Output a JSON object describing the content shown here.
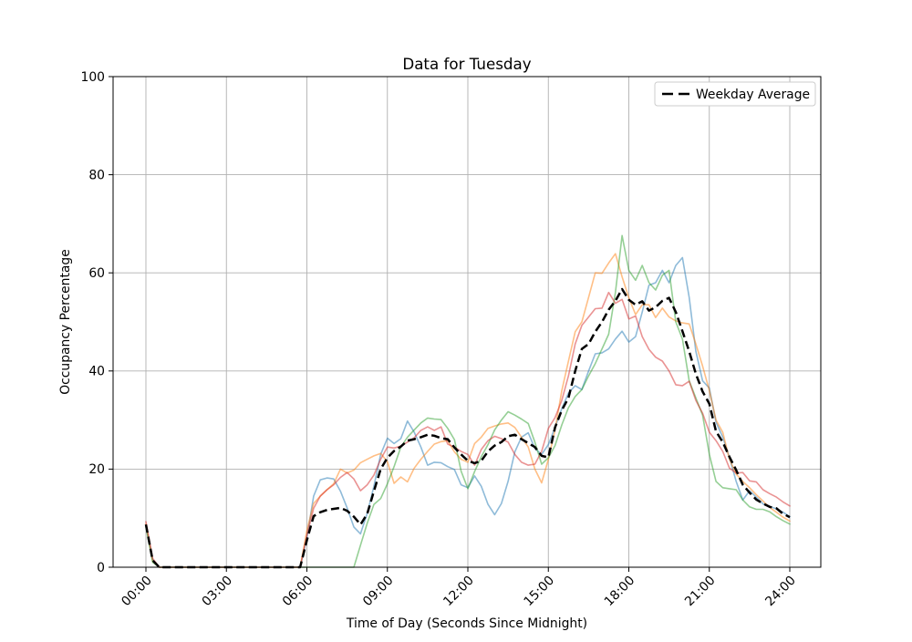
{
  "figure": {
    "background": "#ffffff"
  },
  "chart_data": {
    "type": "line",
    "title": "Data for Tuesday",
    "xlabel": "Time of Day (Seconds Since Midnight)",
    "ylabel": "Occupancy Percentage",
    "ylim": [
      0,
      100
    ],
    "y_ticks": [
      0,
      20,
      40,
      60,
      80,
      100
    ],
    "x_ticks": [
      {
        "seconds": 0,
        "label": "00:00"
      },
      {
        "seconds": 10800,
        "label": "03:00"
      },
      {
        "seconds": 21600,
        "label": "06:00"
      },
      {
        "seconds": 32400,
        "label": "09:00"
      },
      {
        "seconds": 43200,
        "label": "12:00"
      },
      {
        "seconds": 54000,
        "label": "15:00"
      },
      {
        "seconds": 64800,
        "label": "18:00"
      },
      {
        "seconds": 75600,
        "label": "21:00"
      },
      {
        "seconds": 86400,
        "label": "24:00"
      }
    ],
    "grid": true,
    "grid_color": "#b0b0b0",
    "x_start_seconds": 0,
    "x_step_seconds": 900,
    "series": [
      {
        "name": "line-1",
        "color": "#1f77b4",
        "alpha": 0.5,
        "line_width": 1.6,
        "values": [
          8.6,
          1.5,
          0,
          0,
          0,
          0,
          0,
          0,
          0,
          0,
          0,
          0,
          0,
          0,
          0,
          0,
          0,
          0,
          0,
          0,
          0,
          0,
          0,
          0,
          6,
          14.5,
          17.8,
          18.2,
          18,
          15.5,
          12.1,
          8.2,
          6.8,
          11,
          16.5,
          23,
          26.3,
          25.2,
          26.2,
          29.8,
          27.5,
          24.5,
          20.8,
          21.4,
          21.3,
          20.5,
          19.9,
          16.8,
          16.2,
          18.6,
          16.5,
          12.8,
          10.7,
          13,
          17.5,
          23.5,
          26.5,
          27.4,
          24.2,
          23,
          25,
          28.5,
          32.3,
          35.5,
          37,
          36.2,
          40,
          43.5,
          43.7,
          44.5,
          46.5,
          48.1,
          45.9,
          47,
          52,
          57.5,
          58,
          60.5,
          58,
          61.5,
          63.1,
          55,
          44,
          38,
          36.5,
          29.6,
          26.5,
          22.4,
          17.5,
          13.7,
          15.6,
          14.3,
          12.9,
          12.4,
          11.9,
          11.2,
          10.3
        ]
      },
      {
        "name": "line-2",
        "color": "#ff7f0e",
        "alpha": 0.5,
        "line_width": 1.6,
        "values": [
          8.8,
          1.2,
          0,
          0,
          0,
          0,
          0,
          0,
          0,
          0,
          0,
          0,
          0,
          0,
          0,
          0,
          0,
          0,
          0,
          0,
          0,
          0,
          0,
          0,
          7.5,
          13,
          14.5,
          15.8,
          17,
          20,
          19.2,
          19.8,
          21.3,
          22,
          22.7,
          23.2,
          21.5,
          17.1,
          18.4,
          17.4,
          20.2,
          22,
          23.6,
          25.1,
          25.6,
          25.8,
          23.5,
          22,
          21.4,
          25.2,
          26.5,
          28.3,
          28.8,
          29.2,
          29.4,
          28.5,
          26.5,
          24.5,
          20,
          17.2,
          22,
          28,
          36,
          42,
          48,
          50,
          55,
          60,
          59.9,
          62,
          63.9,
          59.2,
          54.9,
          51.5,
          53.5,
          53.5,
          50.9,
          52.8,
          51,
          50.2,
          49.8,
          49.6,
          45.5,
          41,
          36,
          30,
          27.5,
          22,
          19,
          17.5,
          16.2,
          14.8,
          13.5,
          12.2,
          11.2,
          10.2,
          9.4
        ]
      },
      {
        "name": "line-3",
        "color": "#2ca02c",
        "alpha": 0.5,
        "line_width": 1.6,
        "values": [
          8.2,
          1.0,
          0,
          0,
          0,
          0,
          0,
          0,
          0,
          0,
          0,
          0,
          0,
          0,
          0,
          0,
          0,
          0,
          0,
          0,
          0,
          0,
          0,
          0,
          0,
          0,
          0,
          0,
          0,
          0,
          0,
          0,
          4.5,
          9,
          12.8,
          14,
          17,
          20.5,
          24.5,
          26.5,
          28,
          29.4,
          30.4,
          30.2,
          30.1,
          28.3,
          26,
          19.6,
          16,
          19.5,
          22.5,
          25,
          28,
          30,
          31.7,
          31,
          30.2,
          29.3,
          25.5,
          21,
          22.3,
          24.8,
          29,
          32.5,
          34.8,
          36.2,
          39,
          41.5,
          44.5,
          47.5,
          56,
          67.6,
          60.5,
          58.5,
          61.5,
          58,
          56.5,
          59.5,
          60.5,
          50,
          46.5,
          38,
          34.5,
          31,
          23,
          17.5,
          16.2,
          16,
          15.8,
          13.7,
          12.3,
          11.8,
          11.8,
          11.3,
          10.3,
          9.5,
          8.8
        ]
      },
      {
        "name": "line-4",
        "color": "#d62728",
        "alpha": 0.5,
        "line_width": 1.6,
        "values": [
          9.3,
          1.8,
          0,
          0,
          0,
          0,
          0,
          0,
          0,
          0,
          0,
          0,
          0,
          0,
          0,
          0,
          0,
          0,
          0,
          0,
          0,
          0,
          0,
          0,
          6.5,
          12,
          14.5,
          15.8,
          16.8,
          18.3,
          19.3,
          18,
          15.6,
          16.8,
          18.8,
          22,
          24.5,
          24.3,
          24.7,
          25.5,
          26.4,
          27.9,
          28.6,
          27.9,
          28.6,
          25.1,
          24.5,
          23.6,
          23,
          20.8,
          24,
          25.8,
          26.7,
          26.2,
          25.5,
          23,
          21.4,
          20.8,
          21,
          23.6,
          28.3,
          30.5,
          34,
          39,
          45.5,
          49.3,
          51,
          52.7,
          52.8,
          56,
          53.8,
          54.6,
          50.6,
          51.2,
          47,
          44.4,
          42.8,
          42,
          40,
          37.2,
          37,
          37.9,
          34,
          31.4,
          27.5,
          25.8,
          23.6,
          20.2,
          19.2,
          19.3,
          17.6,
          17.4,
          15.8,
          15,
          14.3,
          13.3,
          12.5
        ]
      }
    ],
    "average": {
      "name": "Weekday Average",
      "color": "#000000",
      "line_style": "dashed",
      "line_width": 2.5,
      "values": [
        8.7,
        1.4,
        0,
        0,
        0,
        0,
        0,
        0,
        0,
        0,
        0,
        0,
        0,
        0,
        0,
        0,
        0,
        0,
        0,
        0,
        0,
        0,
        0,
        0,
        5.5,
        10.4,
        11.2,
        11.7,
        11.9,
        12.1,
        11.5,
        10.3,
        8.7,
        10.9,
        15.5,
        20,
        22.3,
        23.7,
        24.6,
        25.8,
        26.1,
        26.5,
        27,
        26.8,
        26.3,
        26.1,
        24.4,
        23,
        21.7,
        21.2,
        21.7,
        23.6,
        24.8,
        25.5,
        26.7,
        27,
        26.1,
        25.3,
        24.5,
        22.7,
        22.4,
        28.5,
        32,
        34.5,
        40,
        44.5,
        45.5,
        48,
        50,
        52.5,
        54.3,
        56.7,
        54.5,
        53.5,
        54.2,
        52.3,
        53,
        54.3,
        54.9,
        52,
        48.1,
        44,
        39.4,
        35.8,
        33.3,
        27.7,
        25.5,
        22.5,
        19.8,
        16.8,
        15.2,
        13.8,
        13,
        12.3,
        12,
        10.9,
        10.2
      ]
    },
    "legend": {
      "position": "upper right",
      "entries": [
        {
          "label": "Weekday Average",
          "color": "#000000",
          "line_style": "dashed"
        }
      ]
    }
  }
}
